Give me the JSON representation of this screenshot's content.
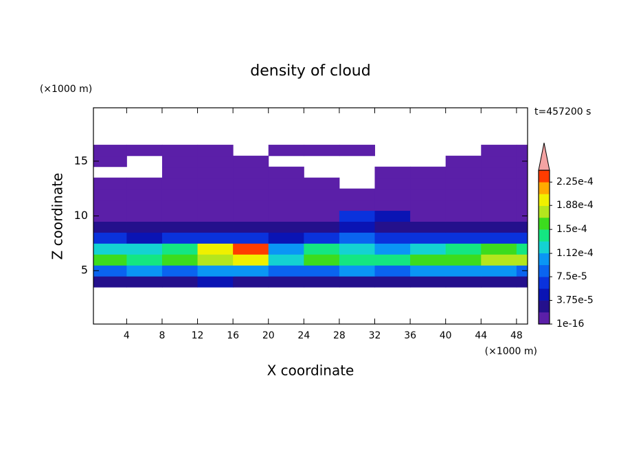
{
  "chart_data": {
    "type": "contour",
    "title": "density of cloud",
    "xlabel": "X coordinate",
    "ylabel": "Z coordinate",
    "xunit": "(×1000 m)",
    "yunit": "(×1000 m)",
    "time_label": "t=457200 s",
    "xlim": [
      0.25,
      49.25
    ],
    "ylim": [
      0.125,
      19.875
    ],
    "xticks": [
      4,
      8,
      12,
      16,
      20,
      24,
      28,
      32,
      36,
      40,
      44,
      48
    ],
    "yticks": [
      5,
      10,
      15
    ],
    "field": {
      "x": [
        2,
        6,
        10,
        14,
        18,
        22,
        26,
        30,
        34,
        38,
        42,
        46,
        50
      ],
      "z": [
        4,
        5,
        6,
        7,
        8,
        9,
        10,
        11,
        12,
        13,
        14,
        15,
        16
      ],
      "values": [
        [
          3e-05,
          3.5e-05,
          3e-05,
          4e-05,
          3.5e-05,
          2.5e-05,
          3e-05,
          3.5e-05,
          3e-05,
          3.5e-05,
          3e-05,
          3.5e-05,
          3e-05
        ],
        [
          9e-05,
          0.0001,
          9e-05,
          0.000105,
          0.0001,
          8e-05,
          9e-05,
          0.0001,
          9e-05,
          0.0001,
          9.5e-05,
          0.0001,
          9e-05
        ],
        [
          0.00016,
          0.00015,
          0.00016,
          0.000185,
          0.00019,
          0.00012,
          0.00016,
          0.00014,
          0.000145,
          0.00016,
          0.000165,
          0.00018,
          0.00017
        ],
        [
          0.00013,
          0.00012,
          0.00014,
          0.00019,
          0.00023,
          0.00011,
          0.000135,
          0.00012,
          0.00011,
          0.00013,
          0.00014,
          0.00016,
          0.00015
        ],
        [
          6e-05,
          5e-05,
          6.5e-05,
          7e-05,
          6e-05,
          5.5e-05,
          7e-05,
          8e-05,
          7e-05,
          6e-05,
          6.5e-05,
          7e-05,
          6e-05
        ],
        [
          3e-05,
          2.5e-05,
          3e-05,
          3e-05,
          2.5e-05,
          3e-05,
          3e-05,
          4e-05,
          3.5e-05,
          3e-05,
          3e-05,
          3e-05,
          2.5e-05
        ],
        [
          1.5e-05,
          1.2e-05,
          1.5e-05,
          1.5e-05,
          1.2e-05,
          1.5e-05,
          1.8e-05,
          6e-05,
          4e-05,
          1.5e-05,
          1.5e-05,
          1.5e-05,
          1.2e-05
        ],
        [
          1e-05,
          8e-06,
          1e-05,
          1e-05,
          8e-06,
          1e-05,
          1e-05,
          1.2e-05,
          1e-05,
          8e-06,
          1e-05,
          1e-05,
          8e-06
        ],
        [
          8e-06,
          6e-06,
          8e-06,
          8e-06,
          6e-06,
          8e-06,
          8e-06,
          6e-06,
          8e-06,
          6e-06,
          8e-06,
          8e-06,
          6e-06
        ],
        [
          6e-06,
          5e-06,
          6e-06,
          6e-06,
          5e-06,
          6e-06,
          5e-06,
          null,
          6e-06,
          5e-06,
          6e-06,
          6e-06,
          5e-06
        ],
        [
          null,
          null,
          5e-06,
          5e-06,
          4e-06,
          5e-06,
          null,
          null,
          5e-06,
          4e-06,
          5e-06,
          5e-06,
          4e-06
        ],
        [
          4e-06,
          null,
          4e-06,
          4e-06,
          3e-06,
          null,
          null,
          null,
          null,
          null,
          4e-06,
          4e-06,
          3e-06
        ],
        [
          3e-06,
          3e-06,
          3e-06,
          3e-06,
          null,
          3e-06,
          3e-06,
          3e-06,
          null,
          null,
          null,
          3e-06,
          3e-06
        ]
      ]
    },
    "colorbar": {
      "clim": [
        1e-16,
        0.00024375
      ],
      "colors": [
        "#5b1fa8",
        "#24108c",
        "#0a14b4",
        "#0a32dc",
        "#0a64f0",
        "#0a96f5",
        "#14d2d2",
        "#14e682",
        "#3cdc1e",
        "#b4e61e",
        "#f0f000",
        "#ffaa00",
        "#ff3c00"
      ],
      "extend_color": "#f4a3a3",
      "ticks": [
        1e-16,
        {
          "value": 3.75e-05,
          "label": "3.75e-5"
        },
        {
          "value": 7.5e-05,
          "label": "7.5e-5"
        },
        {
          "value": 0.000112,
          "label": "1.12e-4"
        },
        {
          "value": 0.00015,
          "label": "1.5e-4"
        },
        {
          "value": 0.000188,
          "label": "1.88e-4"
        },
        {
          "value": 0.000225,
          "label": "2.25e-4"
        }
      ]
    }
  }
}
